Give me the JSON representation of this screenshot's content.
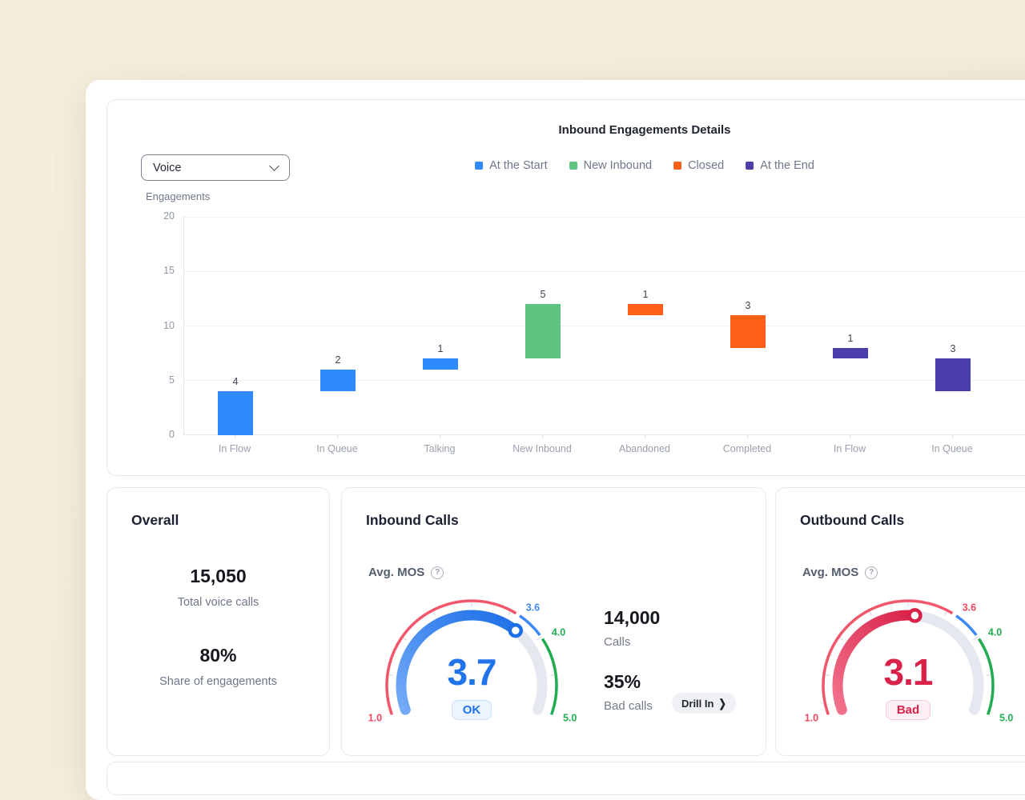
{
  "page": {
    "background": "#F1EAD8",
    "panel_background": "#FFFFFF"
  },
  "icons": {
    "help": "?",
    "chevron_right": "❯"
  },
  "chart_data": {
    "type": "bar",
    "variant": "floating-waterfall",
    "title": "Inbound Engagements Details",
    "filter_value": "Voice",
    "axis_label": "Engagements",
    "xlabel": "",
    "ylabel": "Engagements",
    "ylim": [
      0,
      20
    ],
    "yticks": [
      0,
      5,
      10,
      15,
      20
    ],
    "grid": true,
    "legend_position": "top",
    "legend": [
      {
        "label": "At the Start",
        "color": "#2F8AFB"
      },
      {
        "label": "New Inbound",
        "color": "#5EC37F"
      },
      {
        "label": "Closed",
        "color": "#FC6018"
      },
      {
        "label": "At the End",
        "color": "#4A3EAD"
      }
    ],
    "bars": [
      {
        "category": "In Flow",
        "from": 0,
        "to": 4,
        "value": 4,
        "series": "At the Start",
        "color": "#2F8AFB"
      },
      {
        "category": "In Queue",
        "from": 4,
        "to": 6,
        "value": 2,
        "series": "At the Start",
        "color": "#2F8AFB"
      },
      {
        "category": "Talking",
        "from": 6,
        "to": 7,
        "value": 1,
        "series": "At the Start",
        "color": "#2F8AFB"
      },
      {
        "category": "New Inbound",
        "from": 7,
        "to": 12,
        "value": 5,
        "series": "New Inbound",
        "color": "#5EC37F"
      },
      {
        "category": "Abandoned",
        "from": 11,
        "to": 12,
        "value": 1,
        "series": "Closed",
        "color": "#FC6018"
      },
      {
        "category": "Completed",
        "from": 8,
        "to": 11,
        "value": 3,
        "series": "Closed",
        "color": "#FC6018"
      },
      {
        "category": "In Flow",
        "from": 7,
        "to": 8,
        "value": 1,
        "series": "At the End",
        "color": "#4A3EAD"
      },
      {
        "category": "In Queue",
        "from": 4,
        "to": 7,
        "value": 3,
        "series": "At the End",
        "color": "#4A3EAD"
      }
    ]
  },
  "cards": {
    "overall": {
      "title": "Overall",
      "stats": [
        {
          "value": "15,050",
          "label": "Total voice calls"
        },
        {
          "value": "80%",
          "label": "Share of engagements"
        }
      ]
    },
    "inbound": {
      "title": "Inbound Calls",
      "metric_label": "Avg. MOS",
      "stats": [
        {
          "value": "14,000",
          "label": "Calls"
        },
        {
          "value": "35%",
          "label": "Bad calls"
        }
      ],
      "drill_in_label": "Drill In",
      "gauge": {
        "min": 1,
        "max": 5,
        "value": 3.7,
        "value_display": "3.7",
        "value_color": "#2173EC",
        "status": "OK",
        "status_type": "ok",
        "track_color": "#E5E8EE",
        "progress_from": "#74ABF8",
        "progress_to": "#1D6FE8",
        "segments": [
          {
            "from": 1,
            "to": 3.6,
            "color": "#F2566A"
          },
          {
            "from": 3.6,
            "to": 4,
            "color": "#3E87F7"
          },
          {
            "from": 4,
            "to": 5,
            "color": "#21AC52"
          }
        ],
        "labels": [
          {
            "value": 1,
            "text": "1.0",
            "color": "#E8475F"
          },
          {
            "value": 3.6,
            "text": "3.6",
            "color": "#3E87F7"
          },
          {
            "value": 4,
            "text": "4.0",
            "color": "#21AC52"
          },
          {
            "value": 5,
            "text": "5.0",
            "color": "#21AC52"
          }
        ]
      }
    },
    "outbound": {
      "title": "Outbound Calls",
      "metric_label": "Avg. MOS",
      "gauge": {
        "min": 1,
        "max": 5,
        "value": 3.1,
        "value_display": "3.1",
        "value_color": "#D9214A",
        "status": "Bad",
        "status_type": "bad",
        "track_color": "#E5E8EE",
        "progress_from": "#F1728B",
        "progress_to": "#D9214A",
        "segments": [
          {
            "from": 1,
            "to": 3.6,
            "color": "#F2566A"
          },
          {
            "from": 3.6,
            "to": 4,
            "color": "#3E87F7"
          },
          {
            "from": 4,
            "to": 5,
            "color": "#21AC52"
          }
        ],
        "labels": [
          {
            "value": 1,
            "text": "1.0",
            "color": "#E8475F"
          },
          {
            "value": 3.6,
            "text": "3.6",
            "color": "#EE4661"
          },
          {
            "value": 4,
            "text": "4.0",
            "color": "#21AC52"
          },
          {
            "value": 5,
            "text": "5.0",
            "color": "#21AC52"
          }
        ]
      }
    }
  }
}
